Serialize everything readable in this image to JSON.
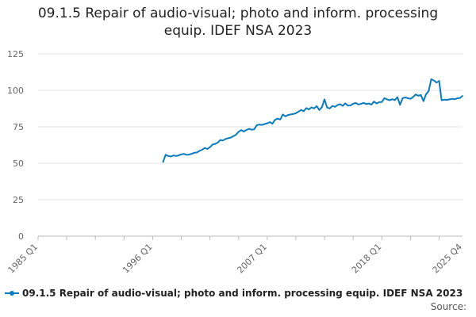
{
  "chart_data": {
    "type": "line",
    "title_line1": "09.1.5 Repair of audio-visual; photo and inform. processing",
    "title_line2": "equip. IDEF NSA 2023",
    "xlabel": "",
    "ylabel": "",
    "ylim": [
      0,
      125
    ],
    "yticks": [
      "0",
      "25",
      "50",
      "75",
      "100",
      "125"
    ],
    "xticks": [
      "1985 Q1",
      "1996 Q1",
      "2007 Q1",
      "2018 Q1",
      "2025 Q4"
    ],
    "grid": "horizontal",
    "legend_position": "bottom-left",
    "series": [
      {
        "name": "09.1.5 Repair of audio-visual; photo and inform. processing equip. IDEF NSA 2023",
        "color": "#0a7bbd",
        "points": [
          [
            "1997 Q1",
            50.8
          ],
          [
            "1997 Q2",
            55.8
          ],
          [
            "1997 Q3",
            55.0
          ],
          [
            "1997 Q4",
            54.6
          ],
          [
            "1998 Q1",
            55.3
          ],
          [
            "1998 Q2",
            55.0
          ],
          [
            "1998 Q3",
            55.4
          ],
          [
            "1998 Q4",
            56.1
          ],
          [
            "1999 Q1",
            56.4
          ],
          [
            "1999 Q2",
            55.8
          ],
          [
            "1999 Q3",
            55.9
          ],
          [
            "1999 Q4",
            56.5
          ],
          [
            "2000 Q1",
            57.2
          ],
          [
            "2000 Q2",
            57.4
          ],
          [
            "2000 Q3",
            58.5
          ],
          [
            "2000 Q4",
            59.3
          ],
          [
            "2001 Q1",
            60.5
          ],
          [
            "2001 Q2",
            59.8
          ],
          [
            "2001 Q3",
            61.0
          ],
          [
            "2001 Q4",
            62.8
          ],
          [
            "2002 Q1",
            63.3
          ],
          [
            "2002 Q2",
            64.2
          ],
          [
            "2002 Q3",
            66.0
          ],
          [
            "2002 Q4",
            65.6
          ],
          [
            "2003 Q1",
            66.7
          ],
          [
            "2003 Q2",
            67.2
          ],
          [
            "2003 Q3",
            67.6
          ],
          [
            "2003 Q4",
            68.6
          ],
          [
            "2004 Q1",
            69.5
          ],
          [
            "2004 Q2",
            71.6
          ],
          [
            "2004 Q3",
            72.7
          ],
          [
            "2004 Q4",
            71.8
          ],
          [
            "2005 Q1",
            72.8
          ],
          [
            "2005 Q2",
            73.6
          ],
          [
            "2005 Q3",
            73.0
          ],
          [
            "2005 Q4",
            73.3
          ],
          [
            "2006 Q1",
            76.1
          ],
          [
            "2006 Q2",
            76.5
          ],
          [
            "2006 Q3",
            76.3
          ],
          [
            "2006 Q4",
            76.9
          ],
          [
            "2007 Q1",
            77.4
          ],
          [
            "2007 Q2",
            78.2
          ],
          [
            "2007 Q3",
            77.2
          ],
          [
            "2007 Q4",
            79.8
          ],
          [
            "2008 Q1",
            80.6
          ],
          [
            "2008 Q2",
            80.0
          ],
          [
            "2008 Q3",
            83.4
          ],
          [
            "2008 Q4",
            82.2
          ],
          [
            "2009 Q1",
            83.1
          ],
          [
            "2009 Q2",
            83.5
          ],
          [
            "2009 Q3",
            83.8
          ],
          [
            "2009 Q4",
            84.3
          ],
          [
            "2010 Q1",
            85.4
          ],
          [
            "2010 Q2",
            86.6
          ],
          [
            "2010 Q3",
            85.7
          ],
          [
            "2010 Q4",
            87.8
          ],
          [
            "2011 Q1",
            86.9
          ],
          [
            "2011 Q2",
            88.3
          ],
          [
            "2011 Q3",
            87.6
          ],
          [
            "2011 Q4",
            89.2
          ],
          [
            "2012 Q1",
            86.5
          ],
          [
            "2012 Q2",
            88.5
          ],
          [
            "2012 Q3",
            93.8
          ],
          [
            "2012 Q4",
            88.2
          ],
          [
            "2013 Q1",
            87.6
          ],
          [
            "2013 Q2",
            89.3
          ],
          [
            "2013 Q3",
            88.7
          ],
          [
            "2013 Q4",
            89.9
          ],
          [
            "2014 Q1",
            90.5
          ],
          [
            "2014 Q2",
            89.4
          ],
          [
            "2014 Q3",
            91.1
          ],
          [
            "2014 Q4",
            89.5
          ],
          [
            "2015 Q1",
            89.7
          ],
          [
            "2015 Q2",
            90.8
          ],
          [
            "2015 Q3",
            91.3
          ],
          [
            "2015 Q4",
            90.3
          ],
          [
            "2016 Q1",
            90.7
          ],
          [
            "2016 Q2",
            91.4
          ],
          [
            "2016 Q3",
            90.6
          ],
          [
            "2016 Q4",
            91.0
          ],
          [
            "2017 Q1",
            90.2
          ],
          [
            "2017 Q2",
            92.3
          ],
          [
            "2017 Q3",
            91.0
          ],
          [
            "2017 Q4",
            91.9
          ],
          [
            "2018 Q1",
            92.0
          ],
          [
            "2018 Q2",
            94.6
          ],
          [
            "2018 Q3",
            93.8
          ],
          [
            "2018 Q4",
            93.2
          ],
          [
            "2019 Q1",
            93.9
          ],
          [
            "2019 Q2",
            93.3
          ],
          [
            "2019 Q3",
            95.3
          ],
          [
            "2019 Q4",
            90.1
          ],
          [
            "2020 Q1",
            94.6
          ],
          [
            "2020 Q2",
            95.1
          ],
          [
            "2020 Q3",
            94.6
          ],
          [
            "2020 Q4",
            94.2
          ],
          [
            "2021 Q1",
            95.4
          ],
          [
            "2021 Q2",
            97.2
          ],
          [
            "2021 Q3",
            96.3
          ],
          [
            "2021 Q4",
            96.8
          ],
          [
            "2022 Q1",
            92.6
          ],
          [
            "2022 Q2",
            97.3
          ],
          [
            "2022 Q3",
            99.5
          ],
          [
            "2022 Q4",
            107.6
          ],
          [
            "2023 Q1",
            106.8
          ],
          [
            "2023 Q2",
            105.3
          ],
          [
            "2023 Q3",
            106.4
          ],
          [
            "2023 Q4",
            93.2
          ],
          [
            "2024 Q1",
            93.6
          ],
          [
            "2024 Q2",
            93.4
          ],
          [
            "2024 Q3",
            93.8
          ],
          [
            "2024 Q4",
            94.2
          ],
          [
            "2025 Q1",
            93.9
          ],
          [
            "2025 Q2",
            94.5
          ],
          [
            "2025 Q3",
            94.8
          ],
          [
            "2025 Q4",
            96.2
          ]
        ]
      }
    ]
  },
  "source_label": "Source:"
}
